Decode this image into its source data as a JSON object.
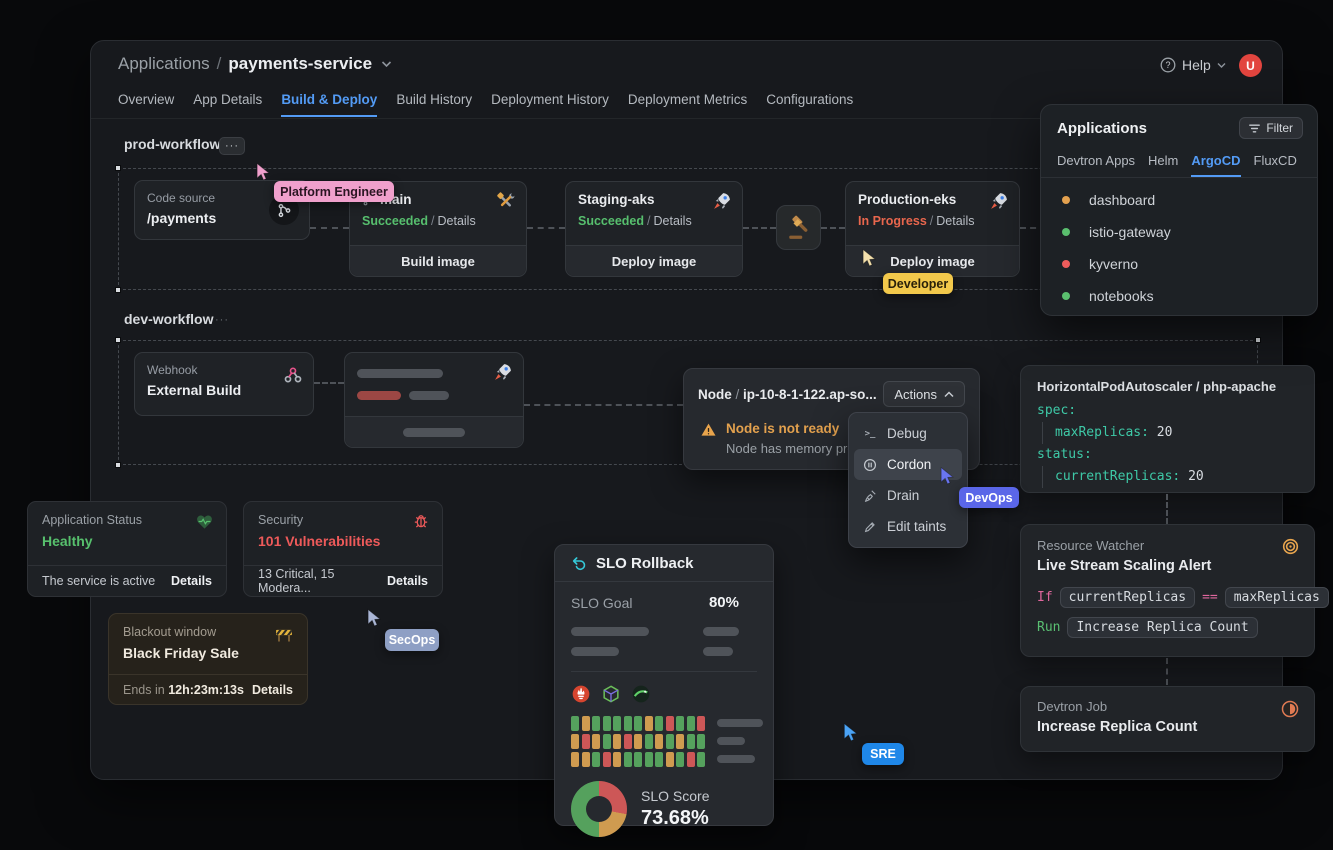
{
  "accents": {
    "blue": "#539bf5",
    "green": "#57bf6e",
    "orange": "#e8664d",
    "warn": "#e3a14e",
    "red": "#ee5a5a",
    "teal": "#3ec9a7",
    "code_pink": "#e0679e",
    "code_green": "#5abf72"
  },
  "app": {
    "breadcrumb_root": "Applications",
    "breadcrumb_sep": "/",
    "app_name": "payments-service",
    "help_label": "Help",
    "avatar_initial": "U",
    "tabs": [
      "Overview",
      "App Details",
      "Build & Deploy",
      "Build History",
      "Deployment History",
      "Deployment Metrics",
      "Configurations"
    ]
  },
  "prod_workflow": {
    "title": "prod-workflow",
    "menu_ellipsis": "···",
    "code_source": {
      "label": "Code source",
      "value": "/payments"
    },
    "build": {
      "name": "main",
      "status": "Succeeded",
      "sep": "/",
      "details": "Details",
      "action": "Build image"
    },
    "staging": {
      "name": "Staging-aks",
      "status": "Succeeded",
      "sep": "/",
      "details": "Details",
      "action": "Deploy image"
    },
    "production": {
      "name": "Production-eks",
      "status": "In Progress",
      "sep": "/",
      "details": "Details",
      "action": "Deploy image"
    }
  },
  "dev_workflow": {
    "title": "dev-workflow",
    "menu_ellipsis": "···",
    "webhook": {
      "label": "Webhook",
      "value": "External Build"
    }
  },
  "applications_panel": {
    "title": "Applications",
    "filter_label": "Filter",
    "tabs": [
      "Devtron Apps",
      "Helm",
      "ArgoCD",
      "FluxCD"
    ],
    "items": [
      {
        "name": "dashboard",
        "color": "#e3a14f"
      },
      {
        "name": "istio-gateway",
        "color": "#5abf6e"
      },
      {
        "name": "kyverno",
        "color": "#ee5c5c"
      },
      {
        "name": "notebooks",
        "color": "#5abf6e"
      }
    ]
  },
  "node_panel": {
    "resource_kind": "Node",
    "sep": "/",
    "resource_name": "ip-10-8-1-122.ap-so...",
    "actions_label": "Actions",
    "warning_title": "Node is not ready",
    "warning_desc": "Node has memory pre",
    "menu": [
      {
        "label": "Debug"
      },
      {
        "label": "Cordon"
      },
      {
        "label": "Drain"
      },
      {
        "label": "Edit taints"
      }
    ]
  },
  "hpa_panel": {
    "title": "HorizontalPodAutoscaler / php-apache",
    "line1_key": "spec:",
    "line2_key": "maxReplicas:",
    "line2_value": "20",
    "line3_key": "status:",
    "line4_key": "currentReplicas:",
    "line4_value": "20"
  },
  "status_card": {
    "title": "Application Status",
    "value": "Healthy",
    "value_color": "#57c06d",
    "footer": "The service is active",
    "details_label": "Details"
  },
  "security_card": {
    "title": "Security",
    "value": "101 Vulnerabilities",
    "value_color": "#ee5a5a",
    "footer": "13 Critical, 15 Modera...",
    "details_label": "Details"
  },
  "blackout_card": {
    "title": "Blackout window",
    "value": "Black Friday Sale",
    "footer_prefix": "Ends in",
    "countdown": "12h:23m:13s",
    "details_label": "Details"
  },
  "slo_panel": {
    "title": "SLO Rollback",
    "goal_label": "SLO Goal",
    "goal_value": "80%",
    "score_label": "SLO Score",
    "score_value": "73.68%",
    "heatmap": [
      "gogggggogrggr",
      "orogorogogogg",
      "oogroggggogrg"
    ],
    "heatmap_colors": {
      "g": "#55a15d",
      "o": "#cf9b50",
      "r": "#cd5757"
    },
    "donut": [
      {
        "color": "#cd5757",
        "pct": 28
      },
      {
        "color": "#cf9b50",
        "pct": 22
      },
      {
        "color": "#55a15d",
        "pct": 50
      }
    ]
  },
  "watcher_panel": {
    "title": "Resource Watcher",
    "subtitle": "Live Stream Scaling Alert",
    "if_keyword": "If",
    "condition_left": "currentReplicas",
    "operator": "==",
    "condition_right": "maxReplicas",
    "run_keyword": "Run",
    "run_action": "Increase Replica Count"
  },
  "job_panel": {
    "title": "Devtron Job",
    "value": "Increase Replica Count"
  },
  "cursors": {
    "platform_engineer": {
      "label": "Platform Engineer",
      "color": "#f0a0cc",
      "text_color": "#2a1522",
      "pointer_color": "#f0a0cc"
    },
    "developer": {
      "label": "Developer",
      "color": "#f2c84b",
      "text_color": "#292009",
      "pointer_color": "#f4e0ac"
    },
    "devops": {
      "label": "DevOps",
      "color": "#5a66e8",
      "text_color": "#ffffff",
      "pointer_color": "#6a76f0"
    },
    "secops": {
      "label": "SecOps",
      "color": "#8e9fc4",
      "text_color": "#ffffff",
      "pointer_color": "#aab6d6"
    },
    "sre": {
      "label": "SRE",
      "color": "#1f87e8",
      "text_color": "#ffffff",
      "pointer_color": "#4ba3f5"
    }
  }
}
